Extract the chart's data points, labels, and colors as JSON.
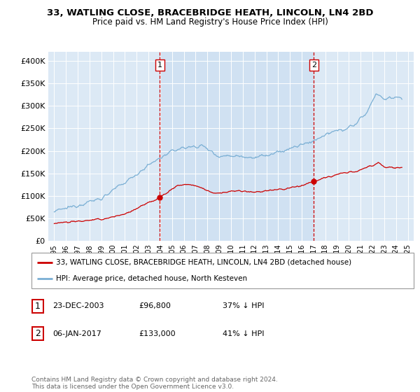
{
  "title1": "33, WATLING CLOSE, BRACEBRIDGE HEATH, LINCOLN, LN4 2BD",
  "title2": "Price paid vs. HM Land Registry's House Price Index (HPI)",
  "red_label": "33, WATLING CLOSE, BRACEBRIDGE HEATH, LINCOLN, LN4 2BD (detached house)",
  "blue_label": "HPI: Average price, detached house, North Kesteven",
  "footnote": "Contains HM Land Registry data © Crown copyright and database right 2024.\nThis data is licensed under the Open Government Licence v3.0.",
  "transaction1": {
    "label": "1",
    "date": "23-DEC-2003",
    "price": "£96,800",
    "pct": "37% ↓ HPI",
    "x": 2003.97
  },
  "transaction2": {
    "label": "2",
    "date": "06-JAN-2017",
    "price": "£133,000",
    "pct": "41% ↓ HPI",
    "x": 2017.02
  },
  "ylim": [
    0,
    420000
  ],
  "xlim": [
    1994.5,
    2025.5
  ],
  "bg_color": "#dce9f5",
  "highlight_color": "#c8dcf0",
  "red_color": "#cc0000",
  "blue_color": "#7aafd4",
  "vline_color": "#cc0000",
  "yticks": [
    0,
    50000,
    100000,
    150000,
    200000,
    250000,
    300000,
    350000,
    400000
  ],
  "ytick_labels": [
    "£0",
    "£50K",
    "£100K",
    "£150K",
    "£200K",
    "£250K",
    "£300K",
    "£350K",
    "£400K"
  ],
  "xticks": [
    1995,
    1996,
    1997,
    1998,
    1999,
    2000,
    2001,
    2002,
    2003,
    2004,
    2005,
    2006,
    2007,
    2008,
    2009,
    2010,
    2011,
    2012,
    2013,
    2014,
    2015,
    2016,
    2017,
    2018,
    2019,
    2020,
    2021,
    2022,
    2023,
    2024,
    2025
  ]
}
